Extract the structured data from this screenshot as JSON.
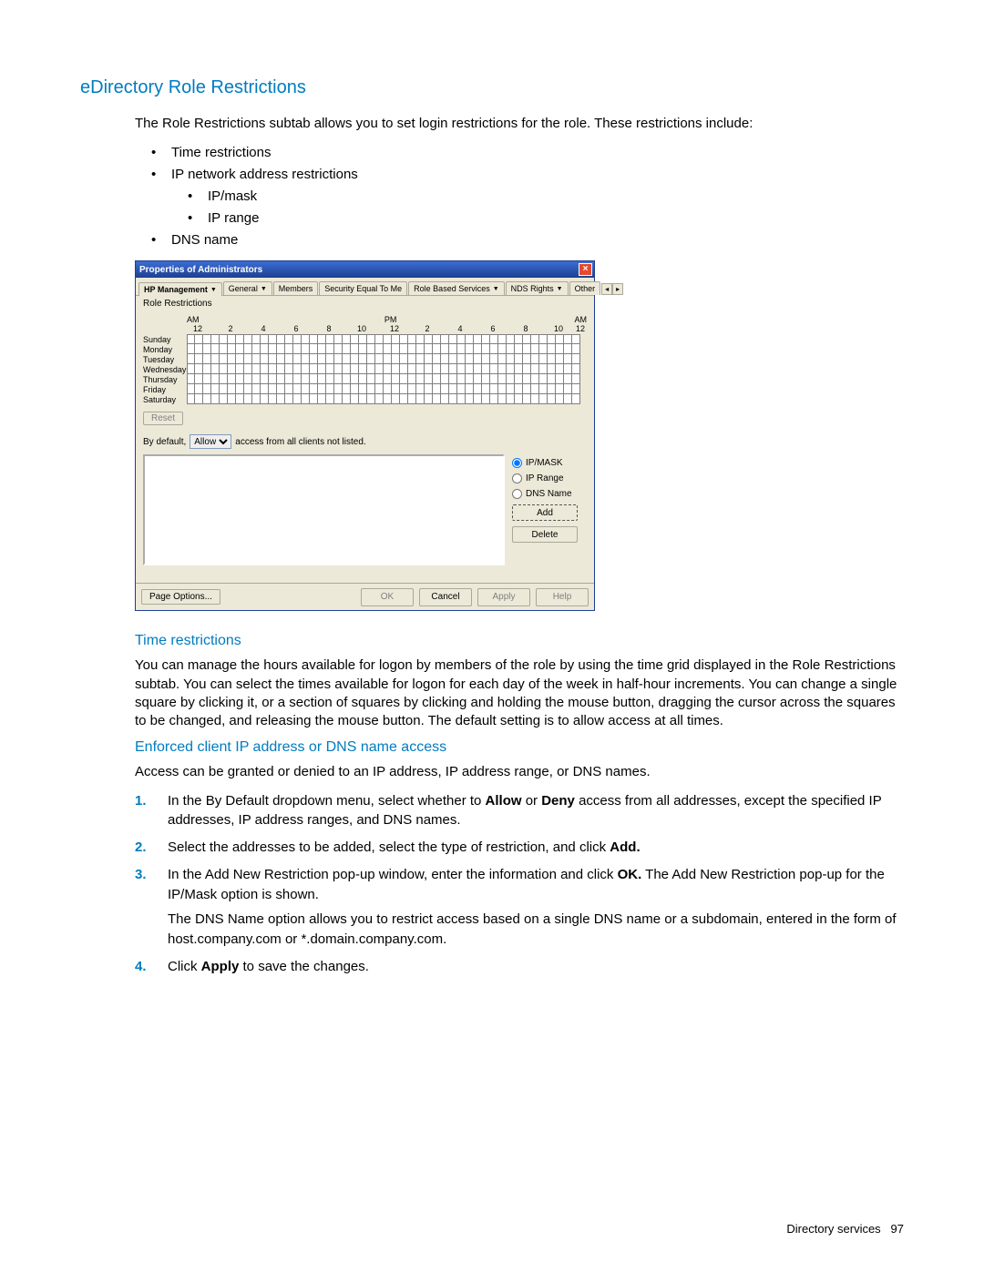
{
  "colors": {
    "accent": "#007cc0",
    "text": "#000000",
    "bg": "#ffffff",
    "titlebar_start": "#3b6ed5",
    "titlebar_end": "#1e3f8f",
    "win_bg": "#ece9d8",
    "border": "#aca899",
    "close_bg": "#e24a32"
  },
  "heading1": "eDirectory Role Restrictions",
  "intro": "The Role Restrictions subtab allows you to set login restrictions for the role. These restrictions include:",
  "bullets1": {
    "a": "Time restrictions",
    "b": "IP network address restrictions",
    "b1": "IP/mask",
    "b2": "IP range",
    "c": "DNS name"
  },
  "dialog": {
    "title": "Properties of Administrators",
    "tabs": {
      "t0": "HP Management",
      "t1": "General",
      "t2": "Members",
      "t3": "Security Equal To Me",
      "t4": "Role Based Services",
      "t5": "NDS Rights",
      "t6": "Other"
    },
    "subtab": "Role Restrictions",
    "ampm": {
      "am1": "AM",
      "pm": "PM",
      "am2": "AM"
    },
    "hours": {
      "h0": "12",
      "h1": "2",
      "h2": "4",
      "h3": "6",
      "h4": "8",
      "h5": "10",
      "h6": "12",
      "h7": "2",
      "h8": "4",
      "h9": "6",
      "h10": "8",
      "h11": "10",
      "h12": "12"
    },
    "days": {
      "d0": "Sunday",
      "d1": "Monday",
      "d2": "Tuesday",
      "d3": "Wednesday",
      "d4": "Thursday",
      "d5": "Friday",
      "d6": "Saturday"
    },
    "reset": "Reset",
    "default_pre": "By default,",
    "default_opt": "Allow",
    "default_post": "access from all clients not listed.",
    "radios": {
      "r0": "IP/MASK",
      "r1": "IP Range",
      "r2": "DNS Name"
    },
    "add": "Add",
    "delete": "Delete",
    "page_options": "Page Options...",
    "ok": "OK",
    "cancel": "Cancel",
    "apply": "Apply",
    "help": "Help"
  },
  "h2a": "Time restrictions",
  "para_a": "You can manage the hours available for logon by members of the role by using the time grid displayed in the Role Restrictions subtab. You can select the times available for logon for each day of the week in half-hour increments. You can change a single square by clicking it, or a section of squares by clicking and holding the mouse button, dragging the cursor across the squares to be changed, and releasing the mouse button. The default setting is to allow access at all times.",
  "h2b": "Enforced client IP address or DNS name access",
  "para_b": "Access can be granted or denied to an IP address, IP address range, or DNS names.",
  "steps": {
    "s1_pre": "In the By Default dropdown menu, select whether to ",
    "s1_b1": "Allow",
    "s1_mid": " or ",
    "s1_b2": "Deny",
    "s1_post": " access from all addresses, except the specified IP addresses, IP address ranges, and DNS names.",
    "s2_pre": "Select the addresses to be added, select the type of restriction, and click ",
    "s2_b": "Add.",
    "s3_pre": "In the Add New Restriction pop-up window, enter the information and click ",
    "s3_b": "OK.",
    "s3_post": " The Add New Restriction pop-up for the IP/Mask option is shown.",
    "s3_note": "The DNS Name option allows you to restrict access based on a single DNS name or a subdomain, entered in the form of host.company.com or *.domain.company.com.",
    "s4_pre": "Click ",
    "s4_b": "Apply",
    "s4_post": " to save the changes."
  },
  "footer": {
    "section": "Directory services",
    "page": "97"
  }
}
